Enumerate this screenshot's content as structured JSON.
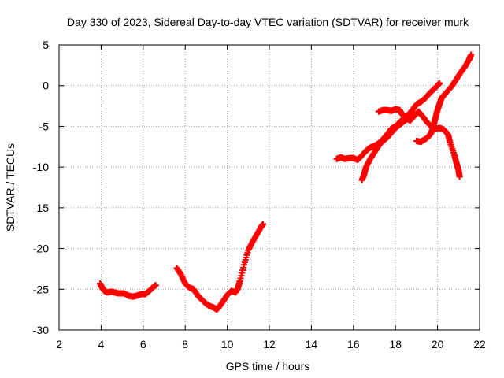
{
  "chart_data": {
    "type": "scatter",
    "title": "Day 330 of 2023, Sidereal Day-to-day VTEC variation (SDTVAR) for receiver murk",
    "xlabel": "GPS time / hours",
    "ylabel": "SDTVAR / TECUs",
    "xlim": [
      2,
      22
    ],
    "ylim": [
      -30,
      5
    ],
    "xticks": [
      2,
      4,
      6,
      8,
      10,
      12,
      14,
      16,
      18,
      20,
      22
    ],
    "yticks": [
      -30,
      -25,
      -20,
      -15,
      -10,
      -5,
      0,
      5
    ],
    "grid": true,
    "marker": "+",
    "series_color": "#ff0000",
    "series": [
      {
        "x": [
          3.95,
          4.05,
          4.15,
          4.3,
          4.5,
          4.8,
          5.1,
          5.3,
          5.5,
          5.7,
          5.9,
          6.1,
          6.3,
          6.45,
          6.6
        ],
        "y": [
          -24.3,
          -24.8,
          -25.2,
          -25.4,
          -25.3,
          -25.5,
          -25.5,
          -25.8,
          -25.9,
          -25.8,
          -25.6,
          -25.6,
          -25.2,
          -24.8,
          -24.5
        ]
      },
      {
        "x": [
          7.6,
          7.8,
          8.0,
          8.2,
          8.4,
          8.6,
          8.8,
          9.0,
          9.2,
          9.4,
          9.5,
          9.6,
          9.8,
          10.0,
          10.2,
          10.4,
          10.5,
          10.6,
          10.8,
          11.0,
          11.2,
          11.4,
          11.6,
          11.7
        ],
        "y": [
          -22.4,
          -23.2,
          -24.3,
          -24.8,
          -25.0,
          -25.8,
          -26.3,
          -26.8,
          -27.1,
          -27.3,
          -27.5,
          -27.2,
          -26.5,
          -25.7,
          -25.2,
          -25.4,
          -24.9,
          -24.0,
          -22.0,
          -20.2,
          -19.2,
          -18.3,
          -17.4,
          -17.0
        ]
      },
      {
        "x": [
          15.2,
          15.4,
          15.6,
          15.8,
          16.0,
          16.2,
          16.4,
          16.6,
          16.8,
          17.0,
          17.2,
          17.4,
          17.6,
          17.8,
          18.0,
          18.2,
          18.4,
          18.6,
          18.8,
          19.0,
          19.2,
          19.4,
          19.6,
          19.8,
          20.0,
          20.1
        ],
        "y": [
          -9.0,
          -8.8,
          -9.0,
          -8.9,
          -8.9,
          -9.1,
          -8.6,
          -8.0,
          -7.6,
          -7.4,
          -7.1,
          -6.6,
          -6.0,
          -5.3,
          -5.0,
          -4.5,
          -4.0,
          -3.6,
          -3.0,
          -2.3,
          -2.0,
          -1.6,
          -1.0,
          -0.5,
          0.0,
          0.3
        ]
      },
      {
        "x": [
          16.4,
          16.5,
          16.6,
          16.8,
          17.0,
          17.2,
          17.4,
          17.6,
          17.8,
          18.0,
          18.2,
          18.4,
          18.6,
          18.8,
          18.9
        ],
        "y": [
          -11.6,
          -11.0,
          -10.0,
          -9.0,
          -8.2,
          -7.4,
          -6.8,
          -6.4,
          -5.8,
          -5.2,
          -4.8,
          -4.4,
          -4.0,
          -3.6,
          -3.3
        ]
      },
      {
        "x": [
          17.2,
          17.4,
          17.6,
          17.8,
          18.0,
          18.2,
          18.3,
          18.5,
          18.7,
          18.9,
          19.1,
          19.3,
          19.5,
          19.7,
          19.9,
          20.1,
          20.3,
          20.5,
          20.6,
          20.8,
          20.9,
          21.0,
          21.05
        ],
        "y": [
          -3.2,
          -3.0,
          -3.0,
          -3.1,
          -2.9,
          -3.0,
          -3.5,
          -4.0,
          -4.3,
          -3.7,
          -3.2,
          -3.8,
          -4.5,
          -5.0,
          -5.3,
          -5.2,
          -5.4,
          -6.0,
          -7.0,
          -8.5,
          -9.5,
          -10.4,
          -11.2
        ]
      },
      {
        "x": [
          19.0,
          19.2,
          19.4,
          19.6,
          19.7,
          19.8,
          19.9,
          20.0,
          20.1,
          20.2,
          20.3,
          20.5,
          20.7,
          20.9,
          21.1,
          21.3,
          21.5,
          21.6
        ],
        "y": [
          -6.8,
          -6.9,
          -6.6,
          -6.2,
          -5.8,
          -5.0,
          -4.0,
          -3.0,
          -2.2,
          -1.5,
          -1.2,
          -0.6,
          0.0,
          0.8,
          1.6,
          2.3,
          3.2,
          3.8
        ]
      }
    ]
  }
}
